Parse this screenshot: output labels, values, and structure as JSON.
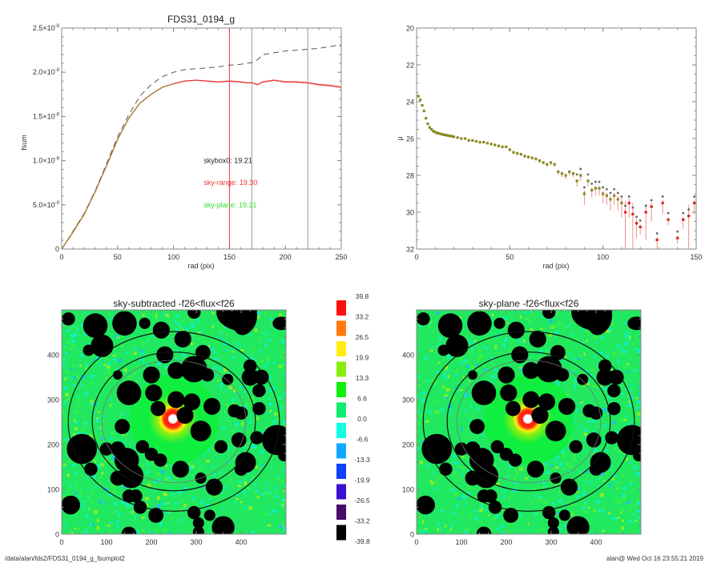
{
  "footer": {
    "path": "/data/alan/fds2/FDS31_0194_g_fsumplot2",
    "stamp": "alan@  Wed Oct 16 23:55:21 2019"
  },
  "chart_data": [
    {
      "id": "growth-curve",
      "type": "line",
      "title": "FDS31_0194_g",
      "xlabel": "rad (pix)",
      "ylabel": "fsum",
      "xlim": [
        0,
        250
      ],
      "ylim": [
        0,
        2.5e-08
      ],
      "xticks": [
        0,
        50,
        100,
        150,
        200,
        250
      ],
      "xtick_labels": [
        "0",
        "50",
        "100",
        "150",
        "200",
        "250"
      ],
      "yticks": [
        0,
        5e-09,
        1e-08,
        1.5e-08,
        2e-08,
        2.5e-08
      ],
      "ytick_labels": [
        {
          "mant": "0",
          "exp": ""
        },
        {
          "mant": "5.0×10",
          "exp": "-9"
        },
        {
          "mant": "1.0×10",
          "exp": "-8"
        },
        {
          "mant": "1.5×10",
          "exp": "-8"
        },
        {
          "mant": "2.0×10",
          "exp": "-8"
        },
        {
          "mant": "2.5×10",
          "exp": "-8"
        }
      ],
      "vlines": [
        {
          "x": 150,
          "color": "#e8383a"
        },
        {
          "x": 170,
          "color": "#9a9a9a"
        },
        {
          "x": 220,
          "color": "#9a9a9a"
        }
      ],
      "annotations": [
        {
          "text": "skybox0: 19.21",
          "color": "#222222",
          "x": 127,
          "y": 1e-08
        },
        {
          "text": "sky-range: 19.30",
          "color": "#e8383a",
          "x": 127,
          "y": 7.5e-09
        },
        {
          "text": "sky-plane: 19.31",
          "color": "#33dd33",
          "x": 127,
          "y": 5e-09
        }
      ],
      "series": [
        {
          "name": "skybox0",
          "style": "dashed",
          "color": "#555555",
          "x": [
            0,
            10,
            20,
            30,
            40,
            50,
            60,
            70,
            80,
            90,
            100,
            110,
            120,
            130,
            140,
            150,
            160,
            170,
            175,
            180,
            190,
            200,
            210,
            220,
            230,
            240,
            250
          ],
          "y": [
            0,
            2e-09,
            4e-09,
            6.6e-09,
            9.6e-09,
            1.27e-08,
            1.52e-08,
            1.73e-08,
            1.86e-08,
            1.95e-08,
            2e-08,
            2.03e-08,
            2.04e-08,
            2.05e-08,
            2.06e-08,
            2.08e-08,
            2.09e-08,
            2.11e-08,
            2.14e-08,
            2.2e-08,
            2.22e-08,
            2.24e-08,
            2.25e-08,
            2.26e-08,
            2.27e-08,
            2.29e-08,
            2.31e-08
          ]
        },
        {
          "name": "sky-range",
          "style": "solid-errorbars",
          "color": "#e8383a",
          "x": [
            0,
            10,
            20,
            30,
            40,
            50,
            60,
            70,
            80,
            90,
            100,
            110,
            120,
            130,
            140,
            150,
            160,
            165,
            170,
            175,
            180,
            190,
            200,
            210,
            220,
            230,
            240,
            250
          ],
          "y": [
            0,
            1.9e-09,
            3.9e-09,
            6.5e-09,
            9.4e-09,
            1.24e-08,
            1.48e-08,
            1.65e-08,
            1.75e-08,
            1.83e-08,
            1.87e-08,
            1.9e-08,
            1.91e-08,
            1.9e-08,
            1.89e-08,
            1.9e-08,
            1.89e-08,
            1.88e-08,
            1.88e-08,
            1.86e-08,
            1.89e-08,
            1.91e-08,
            1.89e-08,
            1.89e-08,
            1.88e-08,
            1.86e-08,
            1.85e-08,
            1.83e-08
          ]
        },
        {
          "name": "sky-plane",
          "style": "solid",
          "color": "#8a8a20",
          "x": [
            0,
            10,
            20,
            30,
            40,
            50,
            60,
            70,
            80,
            90,
            100
          ],
          "y": [
            0,
            1.9e-09,
            3.9e-09,
            6.5e-09,
            9.4e-09,
            1.24e-08,
            1.48e-08,
            1.65e-08,
            1.75e-08,
            1.83e-08,
            1.87e-08
          ]
        }
      ]
    },
    {
      "id": "surface-brightness",
      "type": "scatter",
      "title": "",
      "xlabel": "rad (pix)",
      "ylabel": "μ",
      "xlim": [
        0,
        150
      ],
      "ylim": [
        32,
        20
      ],
      "xticks": [
        0,
        50,
        100,
        150
      ],
      "xtick_labels": [
        "0",
        "50",
        "100",
        "150"
      ],
      "yticks": [
        20,
        22,
        24,
        26,
        28,
        30,
        32
      ],
      "ytick_labels": [
        "20",
        "22",
        "24",
        "26",
        "28",
        "30",
        "32"
      ],
      "series": [
        {
          "name": "profile",
          "color": "#8a8a20",
          "x": [
            1,
            2,
            3,
            4,
            5,
            6,
            7,
            8,
            9,
            10,
            11,
            12,
            13,
            14,
            15,
            16,
            17,
            18,
            19,
            20,
            22,
            24,
            26,
            28,
            30,
            32,
            34,
            36,
            38,
            40,
            42,
            44,
            46,
            48,
            50,
            52,
            54,
            56,
            58,
            60,
            62,
            64,
            66,
            68,
            70,
            72,
            74,
            76,
            78,
            80,
            82,
            84,
            86,
            88,
            90,
            92,
            94,
            96,
            98,
            100,
            102,
            104,
            106,
            108,
            110,
            112,
            114,
            116,
            118,
            120,
            123,
            126,
            129,
            132,
            135,
            140,
            143,
            146,
            149
          ],
          "y": [
            23.7,
            23.9,
            24.2,
            24.5,
            24.9,
            25.2,
            25.4,
            25.5,
            25.6,
            25.65,
            25.7,
            25.72,
            25.75,
            25.78,
            25.8,
            25.82,
            25.84,
            25.86,
            25.88,
            25.9,
            25.95,
            26.0,
            26.0,
            26.1,
            26.1,
            26.15,
            26.2,
            26.2,
            26.25,
            26.3,
            26.35,
            26.4,
            26.45,
            26.45,
            26.6,
            26.75,
            26.8,
            26.85,
            26.95,
            27.0,
            27.05,
            27.1,
            27.2,
            27.3,
            27.4,
            27.3,
            27.4,
            27.8,
            27.9,
            28.0,
            27.8,
            27.9,
            28.3,
            28.0,
            29.0,
            28.3,
            28.8,
            28.7,
            28.7,
            29.0,
            29.1,
            29.3,
            29.1,
            29.3,
            29.5,
            30.0,
            29.5,
            30.1,
            30.6,
            30.8,
            30.0,
            29.7,
            31.5,
            29.5,
            30.4,
            31.4,
            30.4,
            30.2,
            29.5
          ],
          "err": [
            0.05,
            0.05,
            0.05,
            0.05,
            0.05,
            0.05,
            0.05,
            0.05,
            0.05,
            0.05,
            0.05,
            0.05,
            0.05,
            0.05,
            0.05,
            0.05,
            0.05,
            0.05,
            0.05,
            0.05,
            0.05,
            0.05,
            0.05,
            0.05,
            0.05,
            0.05,
            0.05,
            0.05,
            0.05,
            0.05,
            0.05,
            0.05,
            0.05,
            0.05,
            0.1,
            0.1,
            0.1,
            0.1,
            0.1,
            0.1,
            0.1,
            0.1,
            0.1,
            0.1,
            0.15,
            0.15,
            0.15,
            0.2,
            0.2,
            0.2,
            0.2,
            0.2,
            0.3,
            0.3,
            0.6,
            0.3,
            0.4,
            0.4,
            0.4,
            0.5,
            0.5,
            0.6,
            0.5,
            0.6,
            0.8,
            2.0,
            0.8,
            2.0,
            0.8,
            0.4,
            1.5,
            0.8,
            0.5,
            0.6,
            0.3,
            0.3,
            0.5,
            2.0,
            0.6
          ]
        }
      ]
    },
    {
      "id": "image-sky-subtracted",
      "type": "heatmap",
      "title": "sky-subtracted -f26<flux<f26",
      "xlim": [
        0,
        500
      ],
      "ylim": [
        0,
        500
      ],
      "xticks": [
        0,
        100,
        200,
        300,
        400
      ],
      "xtick_labels": [
        "0",
        "100",
        "200",
        "300",
        "400"
      ],
      "yticks": [
        0,
        100,
        200,
        300,
        400
      ],
      "ytick_labels": [
        "0",
        "100",
        "200",
        "300",
        "400"
      ],
      "center": [
        250,
        255
      ],
      "ellipses_rad_pix": [
        150,
        170,
        220
      ]
    },
    {
      "id": "image-sky-plane",
      "type": "heatmap",
      "title": "sky-plane -f26<flux<f26",
      "xlim": [
        0,
        500
      ],
      "ylim": [
        0,
        500
      ],
      "xticks": [
        0,
        100,
        200,
        300,
        400
      ],
      "xtick_labels": [
        "0",
        "100",
        "200",
        "300",
        "400"
      ],
      "yticks": [
        0,
        100,
        200,
        300,
        400
      ],
      "ytick_labels": [
        "0",
        "100",
        "200",
        "300",
        "400"
      ],
      "center": [
        250,
        255
      ],
      "ellipses_rad_pix": [
        150,
        170,
        220
      ]
    },
    {
      "id": "colorbar",
      "type": "table",
      "labels": [
        "39.8",
        "33.2",
        "26.5",
        "19.9",
        "13.3",
        "6.6",
        "0.0",
        "-6.6",
        "-13.3",
        "-19.9",
        "-26.5",
        "-33.2",
        "-39.8"
      ],
      "colors": [
        "#ff1010",
        "#ff7a10",
        "#ffee10",
        "#88ee10",
        "#10ee10",
        "#10ee70",
        "#10ffe0",
        "#10a8ff",
        "#1040ff",
        "#3a10d0",
        "#4a0a6a",
        "#000000"
      ]
    }
  ]
}
